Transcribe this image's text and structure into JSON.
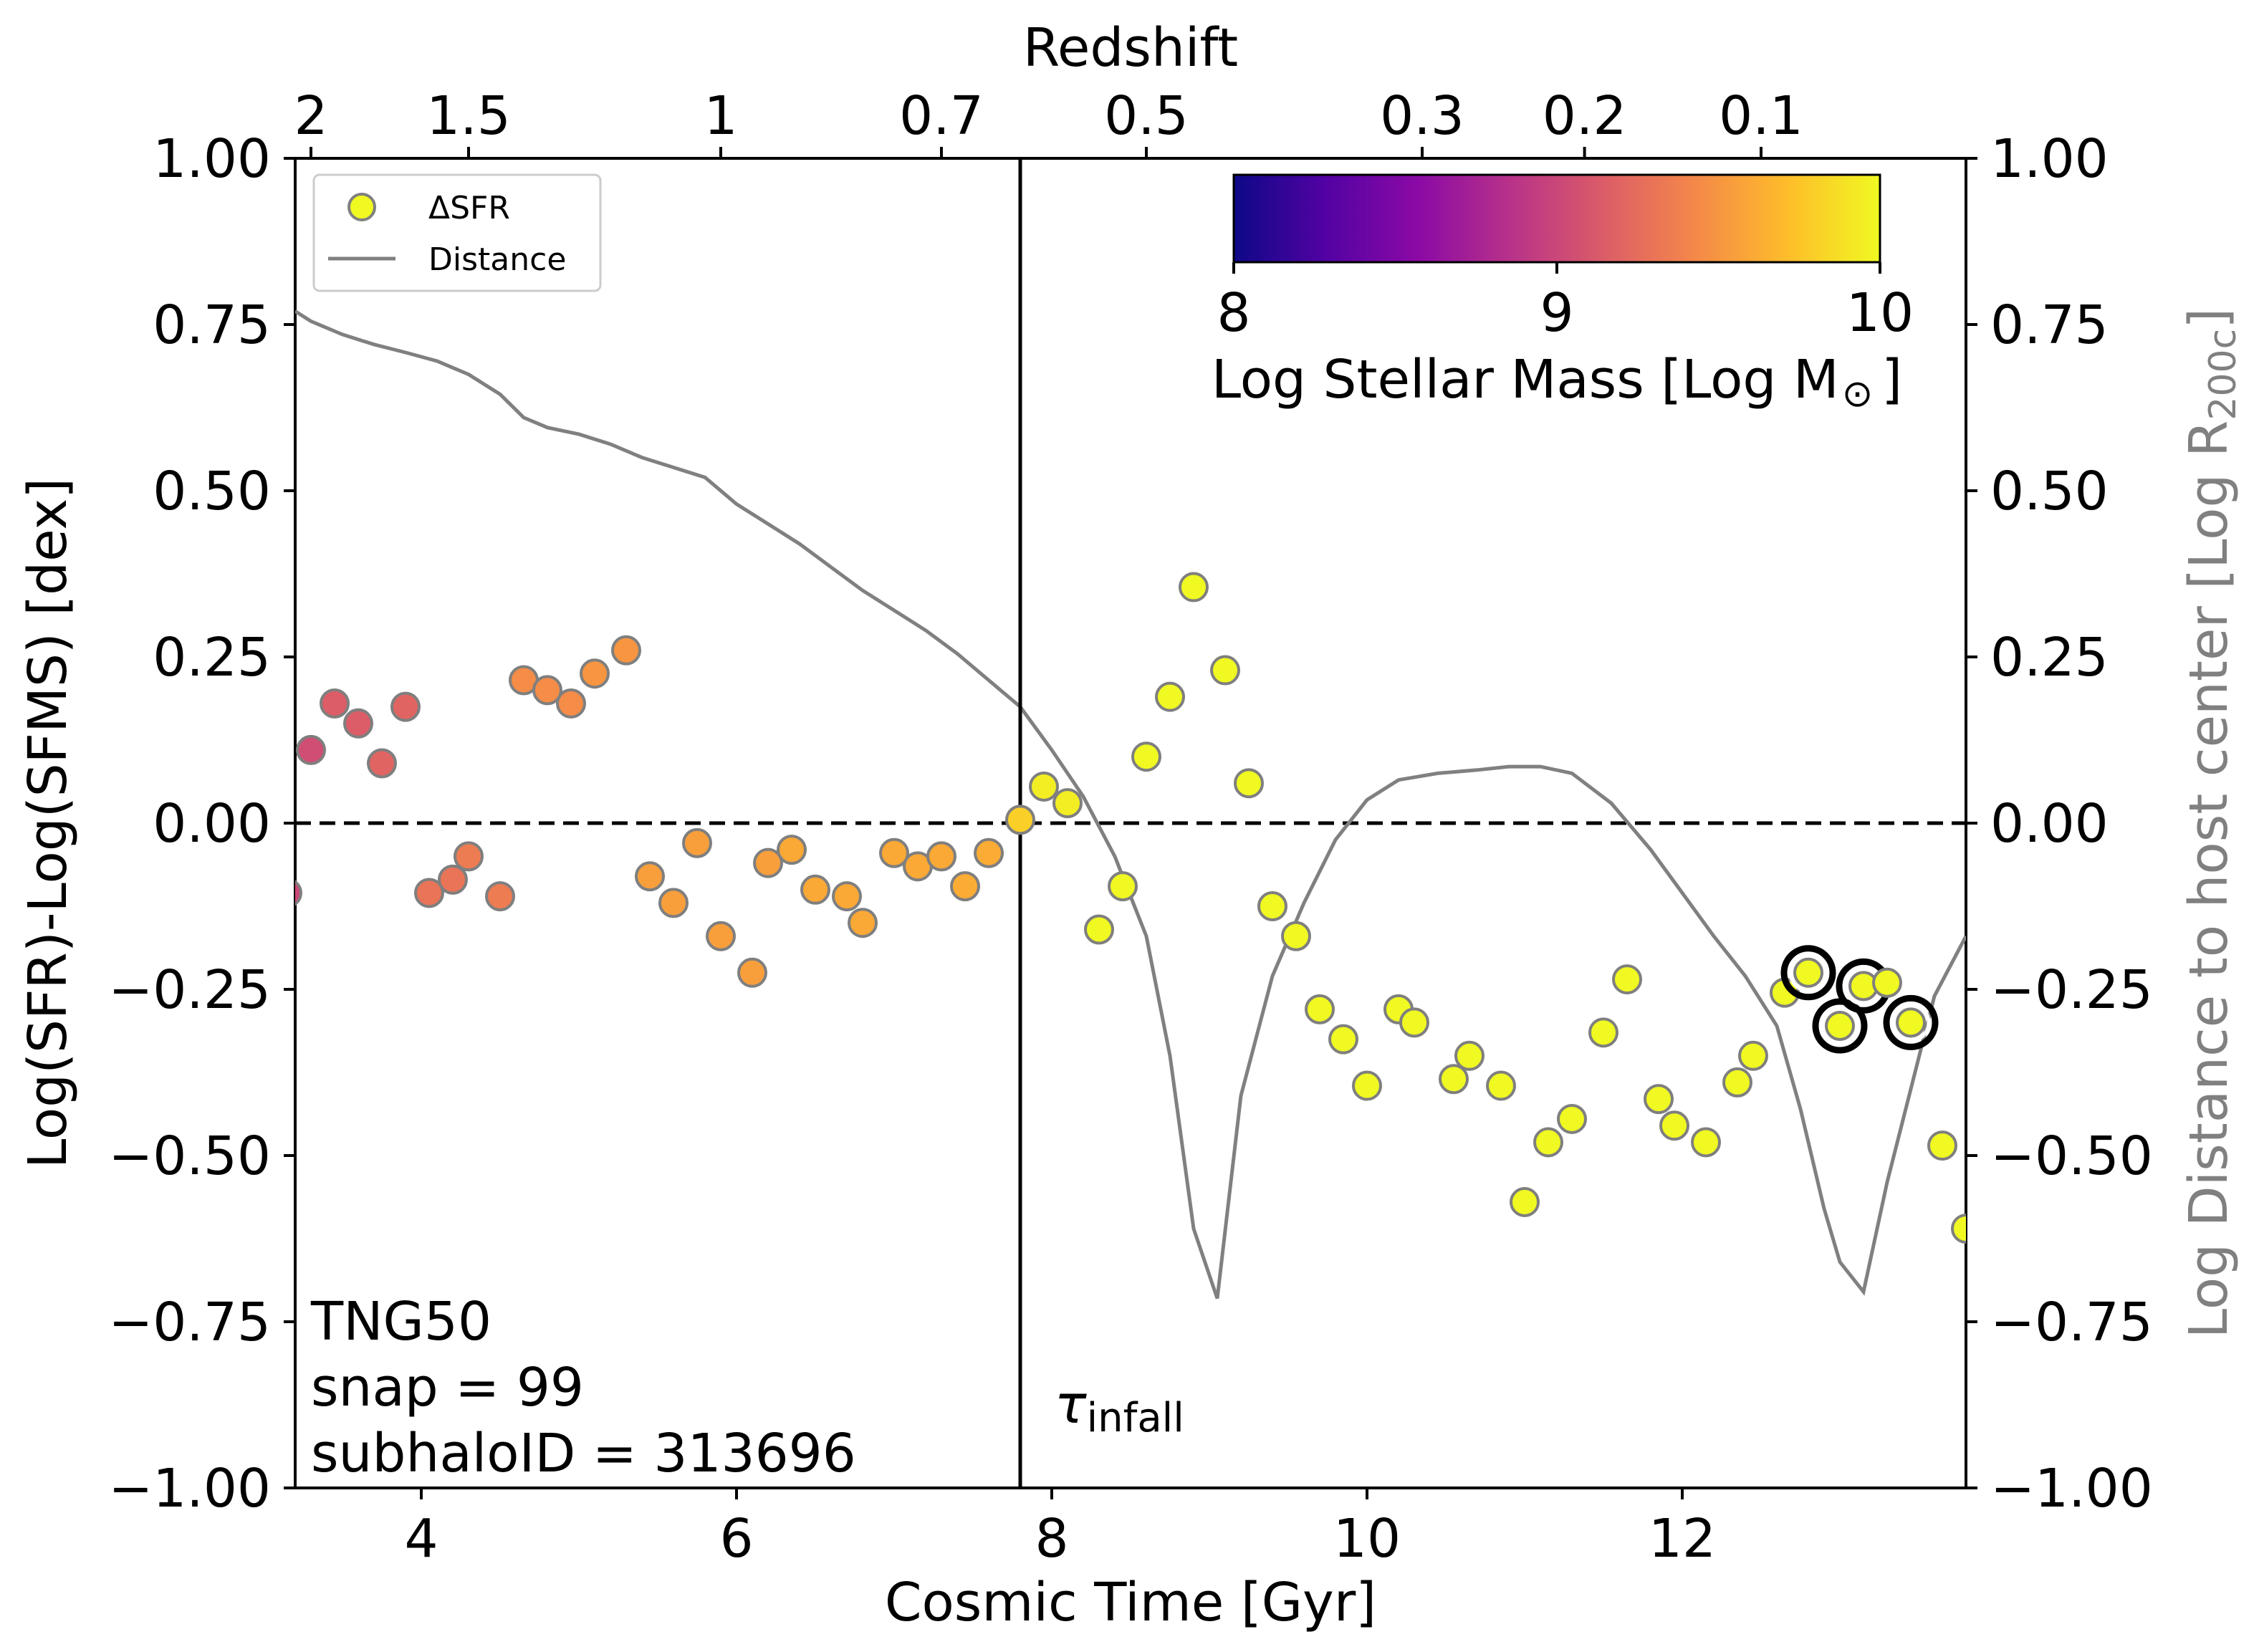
{
  "chart_data": {
    "type": "scatter",
    "xlabel": "Cosmic Time [Gyr]",
    "ylabel": "Log(SFR)-Log(SFMS) [dex]",
    "y2label": "Log Distance to host center [Log R",
    "y2label_sub": "200c",
    "y2label_close": "]",
    "top_label": "Redshift",
    "xlim": [
      3.2,
      13.8
    ],
    "ylim": [
      -1.0,
      1.0
    ],
    "x_ticks": [
      4,
      6,
      8,
      10,
      12
    ],
    "x_tick_labels": [
      "4",
      "6",
      "8",
      "10",
      "12"
    ],
    "y_ticks": [
      -1.0,
      -0.75,
      -0.5,
      -0.25,
      0.0,
      0.25,
      0.5,
      0.75,
      1.0
    ],
    "y_tick_labels": [
      "−1.00",
      "−0.75",
      "−0.50",
      "−0.25",
      "0.00",
      "0.25",
      "0.50",
      "0.75",
      "1.00"
    ],
    "y2_tick_labels": [
      "−1.00",
      "−0.75",
      "−0.50",
      "−0.25",
      "0.00",
      "0.25",
      "0.50",
      "0.75",
      "1.00"
    ],
    "redshift_ticks": [
      {
        "label": "2",
        "time": 3.3
      },
      {
        "label": "1.5",
        "time": 4.3
      },
      {
        "label": "1",
        "time": 5.9
      },
      {
        "label": "0.7",
        "time": 7.3
      },
      {
        "label": "0.5",
        "time": 8.6
      },
      {
        "label": "0.3",
        "time": 10.35
      },
      {
        "label": "0.2",
        "time": 11.38
      },
      {
        "label": "0.1",
        "time": 12.5
      }
    ],
    "legend": {
      "marker_label": "ΔSFR",
      "line_label": "Distance",
      "position": "upper-left"
    },
    "infall_time": 7.8,
    "infall_label": "τ",
    "infall_sub": "infall",
    "zero_line": 0.0,
    "annotation_lines": [
      "TNG50",
      "snap = 99",
      "subhaloID = 313696"
    ],
    "colorbar": {
      "label": "Log Stellar Mass [Log M",
      "label_sun": "⊙",
      "label_close": "]",
      "colormap": "plasma",
      "range": [
        8,
        10
      ],
      "ticks": [
        8,
        9,
        10
      ],
      "tick_labels": [
        "8",
        "9",
        "10"
      ],
      "colors": [
        "#0d0887",
        "#5302a3",
        "#8b0aa5",
        "#b83289",
        "#db5c68",
        "#f48849",
        "#febd2a",
        "#f0f921"
      ]
    },
    "series": [
      {
        "name": "ΔSFR",
        "points": [
          {
            "x": 3.15,
            "y": -0.105,
            "mass": 9.0
          },
          {
            "x": 3.3,
            "y": 0.11,
            "mass": 9.05
          },
          {
            "x": 3.45,
            "y": 0.18,
            "mass": 9.15
          },
          {
            "x": 3.6,
            "y": 0.15,
            "mass": 9.15
          },
          {
            "x": 3.75,
            "y": 0.09,
            "mass": 9.2
          },
          {
            "x": 3.9,
            "y": 0.175,
            "mass": 9.2
          },
          {
            "x": 4.05,
            "y": -0.105,
            "mass": 9.3
          },
          {
            "x": 4.2,
            "y": -0.085,
            "mass": 9.3
          },
          {
            "x": 4.3,
            "y": -0.05,
            "mass": 9.35
          },
          {
            "x": 4.5,
            "y": -0.11,
            "mass": 9.35
          },
          {
            "x": 4.65,
            "y": 0.215,
            "mass": 9.45
          },
          {
            "x": 4.8,
            "y": 0.2,
            "mass": 9.45
          },
          {
            "x": 4.95,
            "y": 0.18,
            "mass": 9.45
          },
          {
            "x": 5.1,
            "y": 0.225,
            "mass": 9.5
          },
          {
            "x": 5.3,
            "y": 0.26,
            "mass": 9.5
          },
          {
            "x": 5.45,
            "y": -0.08,
            "mass": 9.55
          },
          {
            "x": 5.6,
            "y": -0.12,
            "mass": 9.55
          },
          {
            "x": 5.75,
            "y": -0.03,
            "mass": 9.55
          },
          {
            "x": 5.9,
            "y": -0.17,
            "mass": 9.55
          },
          {
            "x": 6.1,
            "y": -0.225,
            "mass": 9.55
          },
          {
            "x": 6.2,
            "y": -0.06,
            "mass": 9.55
          },
          {
            "x": 6.35,
            "y": -0.04,
            "mass": 9.6
          },
          {
            "x": 6.5,
            "y": -0.1,
            "mass": 9.6
          },
          {
            "x": 6.7,
            "y": -0.11,
            "mass": 9.6
          },
          {
            "x": 6.8,
            "y": -0.15,
            "mass": 9.6
          },
          {
            "x": 7.0,
            "y": -0.045,
            "mass": 9.6
          },
          {
            "x": 7.15,
            "y": -0.065,
            "mass": 9.6
          },
          {
            "x": 7.3,
            "y": -0.05,
            "mass": 9.6
          },
          {
            "x": 7.45,
            "y": -0.095,
            "mass": 9.62
          },
          {
            "x": 7.6,
            "y": -0.045,
            "mass": 9.62
          },
          {
            "x": 7.8,
            "y": 0.005,
            "mass": 9.8
          },
          {
            "x": 7.95,
            "y": 0.055,
            "mass": 9.95
          },
          {
            "x": 8.1,
            "y": 0.03,
            "mass": 9.95
          },
          {
            "x": 8.3,
            "y": -0.16,
            "mass": 10.0
          },
          {
            "x": 8.45,
            "y": -0.095,
            "mass": 10.0
          },
          {
            "x": 8.6,
            "y": 0.1,
            "mass": 10.0
          },
          {
            "x": 8.75,
            "y": 0.19,
            "mass": 10.0
          },
          {
            "x": 8.9,
            "y": 0.355,
            "mass": 10.0
          },
          {
            "x": 9.1,
            "y": 0.23,
            "mass": 10.0
          },
          {
            "x": 9.25,
            "y": 0.06,
            "mass": 10.0
          },
          {
            "x": 9.4,
            "y": -0.125,
            "mass": 10.0
          },
          {
            "x": 9.55,
            "y": -0.17,
            "mass": 10.0
          },
          {
            "x": 9.7,
            "y": -0.28,
            "mass": 10.0
          },
          {
            "x": 9.85,
            "y": -0.325,
            "mass": 10.0
          },
          {
            "x": 10.0,
            "y": -0.395,
            "mass": 10.0
          },
          {
            "x": 10.2,
            "y": -0.28,
            "mass": 10.0
          },
          {
            "x": 10.3,
            "y": -0.3,
            "mass": 10.0
          },
          {
            "x": 10.55,
            "y": -0.385,
            "mass": 10.0
          },
          {
            "x": 10.65,
            "y": -0.35,
            "mass": 10.0
          },
          {
            "x": 10.85,
            "y": -0.395,
            "mass": 10.0
          },
          {
            "x": 11.0,
            "y": -0.57,
            "mass": 10.0
          },
          {
            "x": 11.15,
            "y": -0.48,
            "mass": 10.0
          },
          {
            "x": 11.3,
            "y": -0.445,
            "mass": 10.0
          },
          {
            "x": 11.5,
            "y": -0.315,
            "mass": 10.0
          },
          {
            "x": 11.65,
            "y": -0.235,
            "mass": 10.0
          },
          {
            "x": 11.85,
            "y": -0.415,
            "mass": 10.0
          },
          {
            "x": 11.95,
            "y": -0.455,
            "mass": 10.0
          },
          {
            "x": 12.15,
            "y": -0.48,
            "mass": 10.0
          },
          {
            "x": 12.35,
            "y": -0.39,
            "mass": 10.0
          },
          {
            "x": 12.45,
            "y": -0.35,
            "mass": 10.0
          },
          {
            "x": 12.65,
            "y": -0.255,
            "mass": 10.0
          },
          {
            "x": 12.8,
            "y": -0.225,
            "mass": 10.0,
            "highlight": true
          },
          {
            "x": 13.0,
            "y": -0.305,
            "mass": 10.0,
            "highlight": true
          },
          {
            "x": 13.15,
            "y": -0.245,
            "mass": 10.0,
            "highlight": true
          },
          {
            "x": 13.3,
            "y": -0.24,
            "mass": 10.0
          },
          {
            "x": 13.45,
            "y": -0.3,
            "mass": 10.0,
            "highlight": true
          },
          {
            "x": 13.65,
            "y": -0.485,
            "mass": 10.0
          },
          {
            "x": 13.8,
            "y": -0.61,
            "mass": 10.0
          }
        ]
      },
      {
        "name": "Distance",
        "color": "#808080",
        "points": [
          {
            "x": 3.2,
            "y": 0.77
          },
          {
            "x": 3.3,
            "y": 0.755
          },
          {
            "x": 3.5,
            "y": 0.735
          },
          {
            "x": 3.7,
            "y": 0.72
          },
          {
            "x": 3.9,
            "y": 0.708
          },
          {
            "x": 4.1,
            "y": 0.695
          },
          {
            "x": 4.3,
            "y": 0.675
          },
          {
            "x": 4.5,
            "y": 0.645
          },
          {
            "x": 4.65,
            "y": 0.61
          },
          {
            "x": 4.8,
            "y": 0.595
          },
          {
            "x": 5.0,
            "y": 0.585
          },
          {
            "x": 5.2,
            "y": 0.57
          },
          {
            "x": 5.4,
            "y": 0.55
          },
          {
            "x": 5.6,
            "y": 0.535
          },
          {
            "x": 5.8,
            "y": 0.52
          },
          {
            "x": 6.0,
            "y": 0.48
          },
          {
            "x": 6.2,
            "y": 0.45
          },
          {
            "x": 6.4,
            "y": 0.42
          },
          {
            "x": 6.6,
            "y": 0.385
          },
          {
            "x": 6.8,
            "y": 0.35
          },
          {
            "x": 7.0,
            "y": 0.32
          },
          {
            "x": 7.2,
            "y": 0.29
          },
          {
            "x": 7.4,
            "y": 0.255
          },
          {
            "x": 7.6,
            "y": 0.215
          },
          {
            "x": 7.8,
            "y": 0.175
          },
          {
            "x": 8.0,
            "y": 0.11
          },
          {
            "x": 8.2,
            "y": 0.04
          },
          {
            "x": 8.4,
            "y": -0.05
          },
          {
            "x": 8.6,
            "y": -0.17
          },
          {
            "x": 8.75,
            "y": -0.35
          },
          {
            "x": 8.9,
            "y": -0.61
          },
          {
            "x": 9.05,
            "y": -0.715
          },
          {
            "x": 9.2,
            "y": -0.41
          },
          {
            "x": 9.4,
            "y": -0.23
          },
          {
            "x": 9.6,
            "y": -0.12
          },
          {
            "x": 9.8,
            "y": -0.025
          },
          {
            "x": 10.0,
            "y": 0.035
          },
          {
            "x": 10.2,
            "y": 0.065
          },
          {
            "x": 10.45,
            "y": 0.075
          },
          {
            "x": 10.7,
            "y": 0.08
          },
          {
            "x": 10.9,
            "y": 0.085
          },
          {
            "x": 11.1,
            "y": 0.085
          },
          {
            "x": 11.3,
            "y": 0.075
          },
          {
            "x": 11.55,
            "y": 0.03
          },
          {
            "x": 11.8,
            "y": -0.04
          },
          {
            "x": 12.0,
            "y": -0.105
          },
          {
            "x": 12.2,
            "y": -0.17
          },
          {
            "x": 12.4,
            "y": -0.23
          },
          {
            "x": 12.6,
            "y": -0.305
          },
          {
            "x": 12.75,
            "y": -0.43
          },
          {
            "x": 12.9,
            "y": -0.58
          },
          {
            "x": 13.0,
            "y": -0.66
          },
          {
            "x": 13.15,
            "y": -0.705
          },
          {
            "x": 13.3,
            "y": -0.54
          },
          {
            "x": 13.45,
            "y": -0.4
          },
          {
            "x": 13.6,
            "y": -0.26
          },
          {
            "x": 13.8,
            "y": -0.17
          }
        ]
      }
    ]
  }
}
